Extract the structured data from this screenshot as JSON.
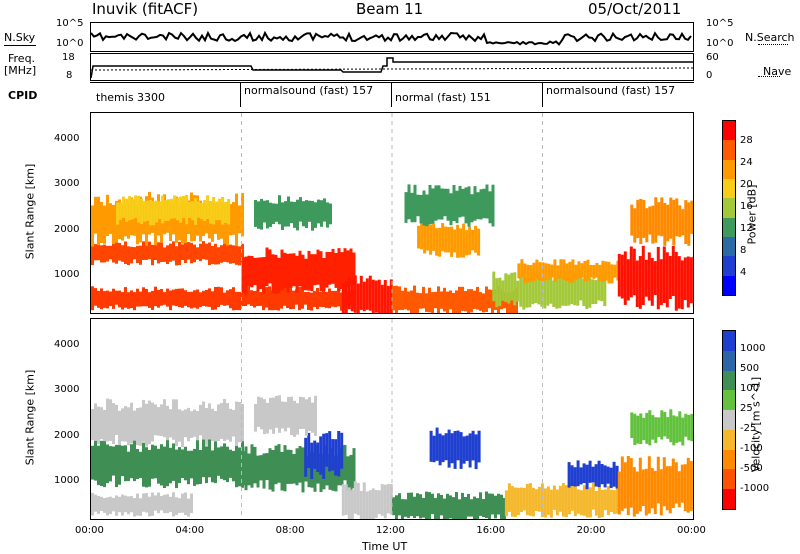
{
  "header": {
    "title": "Inuvik (fitACF)",
    "beam": "Beam 11",
    "date": "05/Oct/2011"
  },
  "side_labels": {
    "nsky": "N.Sky",
    "freq_a": "Freq.",
    "freq_b": "[MHz]",
    "cpid": "CPID",
    "nsearch": "N.Search",
    "nave": "Nave"
  },
  "top_axes": {
    "nsky_ticks": [
      "10^5",
      "10^0"
    ],
    "nsearch_ticks": [
      "10^5",
      "10^0"
    ],
    "freq_ticks": [
      "18",
      "8"
    ],
    "nave_ticks": [
      "60",
      "0"
    ]
  },
  "cpid_segments": [
    {
      "label": "themis 3300",
      "start_h": 0
    },
    {
      "label": "normalsound (fast) 157",
      "start_h": 6
    },
    {
      "label": "normal (fast) 151",
      "start_h": 12
    },
    {
      "label": "normalsound (fast) 157",
      "start_h": 18
    }
  ],
  "x_axis": {
    "label": "Time UT",
    "ticks": [
      "00:00",
      "04:00",
      "08:00",
      "12:00",
      "16:00",
      "20:00",
      "00:00"
    ]
  },
  "y_axis": {
    "label": "Slant Range [km]",
    "ticks": [
      "4000",
      "3000",
      "2000",
      "1000"
    ]
  },
  "power_colorbar": {
    "label": "Power [dB]",
    "ticks": [
      "28",
      "24",
      "20",
      "16",
      "12",
      "8",
      "4"
    ],
    "colors": [
      "#ff0000",
      "#ff5a00",
      "#ff9a00",
      "#f7cd1a",
      "#a3c93a",
      "#3e9a5c",
      "#2a6ba6",
      "#1f3fd0",
      "#0000ff"
    ]
  },
  "velocity_colorbar": {
    "label": "Velocity [m s^-1]",
    "ticks": [
      "1000",
      "500",
      "100",
      "25",
      "-25",
      "-100",
      "-500",
      "-1000"
    ],
    "colors": [
      "#1f3fd0",
      "#2a66a8",
      "#3f8f55",
      "#62c13d",
      "#c8c8c8",
      "#f5b82c",
      "#ff8a00",
      "#ff5200",
      "#ff0000"
    ]
  },
  "chart_data": {
    "type": "heatmap",
    "x_range_hours": [
      0,
      24
    ],
    "y_range_km": [
      180,
      4600
    ],
    "power_regions": [
      {
        "t0": 0.0,
        "t1": 10.5,
        "r0": 300,
        "r1": 700,
        "color": "#ff3a00"
      },
      {
        "t0": 0.0,
        "t1": 6.0,
        "r0": 1300,
        "r1": 1700,
        "color": "#ff4500"
      },
      {
        "t0": 0.0,
        "t1": 6.0,
        "r0": 1800,
        "r1": 2700,
        "color": "#ff9a00"
      },
      {
        "t0": 1.0,
        "t1": 5.5,
        "r0": 2200,
        "r1": 2700,
        "color": "#f7cd1a"
      },
      {
        "t0": 6.0,
        "t1": 10.5,
        "r0": 700,
        "r1": 1500,
        "color": "#ff2000"
      },
      {
        "t0": 6.5,
        "t1": 9.5,
        "r0": 2100,
        "r1": 2700,
        "color": "#3e9a5c"
      },
      {
        "t0": 10.0,
        "t1": 12.0,
        "r0": 200,
        "r1": 900,
        "color": "#ff1500"
      },
      {
        "t0": 12.0,
        "t1": 17.0,
        "r0": 200,
        "r1": 700,
        "color": "#ff5a00"
      },
      {
        "t0": 13.0,
        "t1": 15.5,
        "r0": 1500,
        "r1": 2100,
        "color": "#ff9a00"
      },
      {
        "t0": 12.5,
        "t1": 16.0,
        "r0": 2200,
        "r1": 2900,
        "color": "#3e9a5c"
      },
      {
        "t0": 16.0,
        "t1": 20.5,
        "r0": 350,
        "r1": 1000,
        "color": "#a3c93a"
      },
      {
        "t0": 17.0,
        "t1": 21.0,
        "r0": 900,
        "r1": 1300,
        "color": "#ff9a00"
      },
      {
        "t0": 21.0,
        "t1": 24.0,
        "r0": 400,
        "r1": 1500,
        "color": "#ff1000"
      },
      {
        "t0": 21.5,
        "t1": 24.0,
        "r0": 1800,
        "r1": 2600,
        "color": "#ff8a00"
      }
    ],
    "velocity_regions": [
      {
        "t0": 0.0,
        "t1": 6.0,
        "r0": 1900,
        "r1": 2700,
        "color": "#c8c8c8"
      },
      {
        "t0": 0.0,
        "t1": 6.0,
        "r0": 1000,
        "r1": 1800,
        "color": "#3f8f55"
      },
      {
        "t0": 0.0,
        "t1": 4.0,
        "r0": 300,
        "r1": 700,
        "color": "#c8c8c8"
      },
      {
        "t0": 6.0,
        "t1": 10.5,
        "r0": 900,
        "r1": 1700,
        "color": "#3f8f55"
      },
      {
        "t0": 8.5,
        "t1": 10.0,
        "r0": 1200,
        "r1": 2000,
        "color": "#1f3fd0"
      },
      {
        "t0": 6.5,
        "t1": 9.0,
        "r0": 2100,
        "r1": 2800,
        "color": "#c8c8c8"
      },
      {
        "t0": 10.0,
        "t1": 12.0,
        "r0": 200,
        "r1": 900,
        "color": "#c8c8c8"
      },
      {
        "t0": 12.0,
        "t1": 16.5,
        "r0": 200,
        "r1": 700,
        "color": "#3f8f55"
      },
      {
        "t0": 13.5,
        "t1": 15.5,
        "r0": 1400,
        "r1": 2100,
        "color": "#1f3fd0"
      },
      {
        "t0": 16.5,
        "t1": 21.0,
        "r0": 300,
        "r1": 900,
        "color": "#f5b82c"
      },
      {
        "t0": 19.0,
        "t1": 21.0,
        "r0": 900,
        "r1": 1400,
        "color": "#1f3fd0"
      },
      {
        "t0": 21.0,
        "t1": 24.0,
        "r0": 400,
        "r1": 1400,
        "color": "#ff8a00"
      },
      {
        "t0": 21.5,
        "t1": 24.0,
        "r0": 1900,
        "r1": 2500,
        "color": "#62c13d"
      }
    ]
  }
}
